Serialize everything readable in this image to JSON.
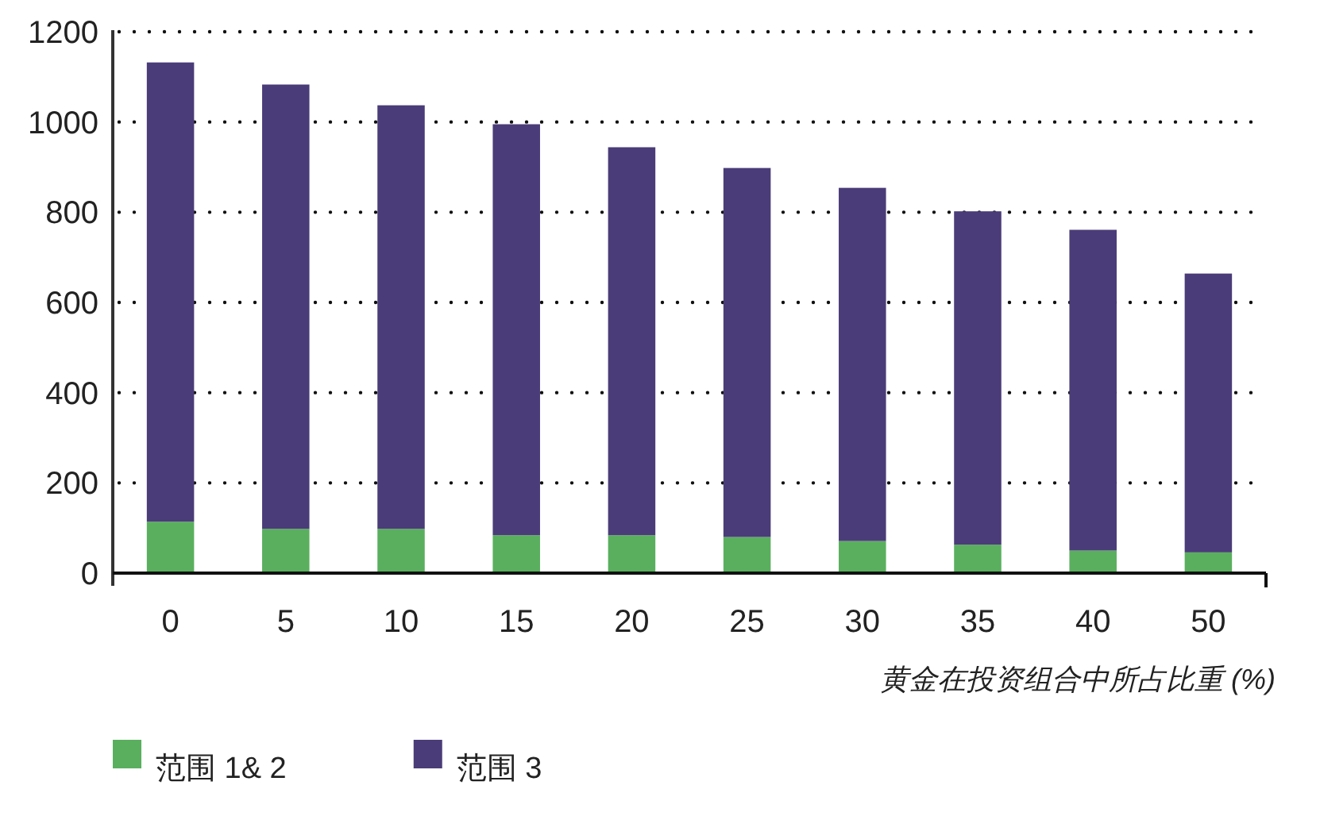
{
  "chart_data": {
    "type": "bar",
    "stacked": true,
    "categories": [
      "0",
      "5",
      "10",
      "15",
      "20",
      "25",
      "30",
      "35",
      "40",
      "50"
    ],
    "series": [
      {
        "name": "范围 1& 2",
        "color": "#5aaf5e",
        "values": [
          114,
          98,
          98,
          84,
          84,
          80,
          71,
          63,
          50,
          46
        ]
      },
      {
        "name": "范围 3",
        "color": "#4a3c78",
        "values": [
          1018,
          985,
          939,
          911,
          860,
          818,
          783,
          739,
          711,
          618
        ]
      }
    ],
    "xlabel": "黄金在投资组合中所占比重 (%)",
    "ylim": [
      0,
      1200
    ],
    "yticks": [
      0,
      200,
      400,
      600,
      800,
      1000,
      1200
    ],
    "grid": "y",
    "legend": "bottom left"
  }
}
